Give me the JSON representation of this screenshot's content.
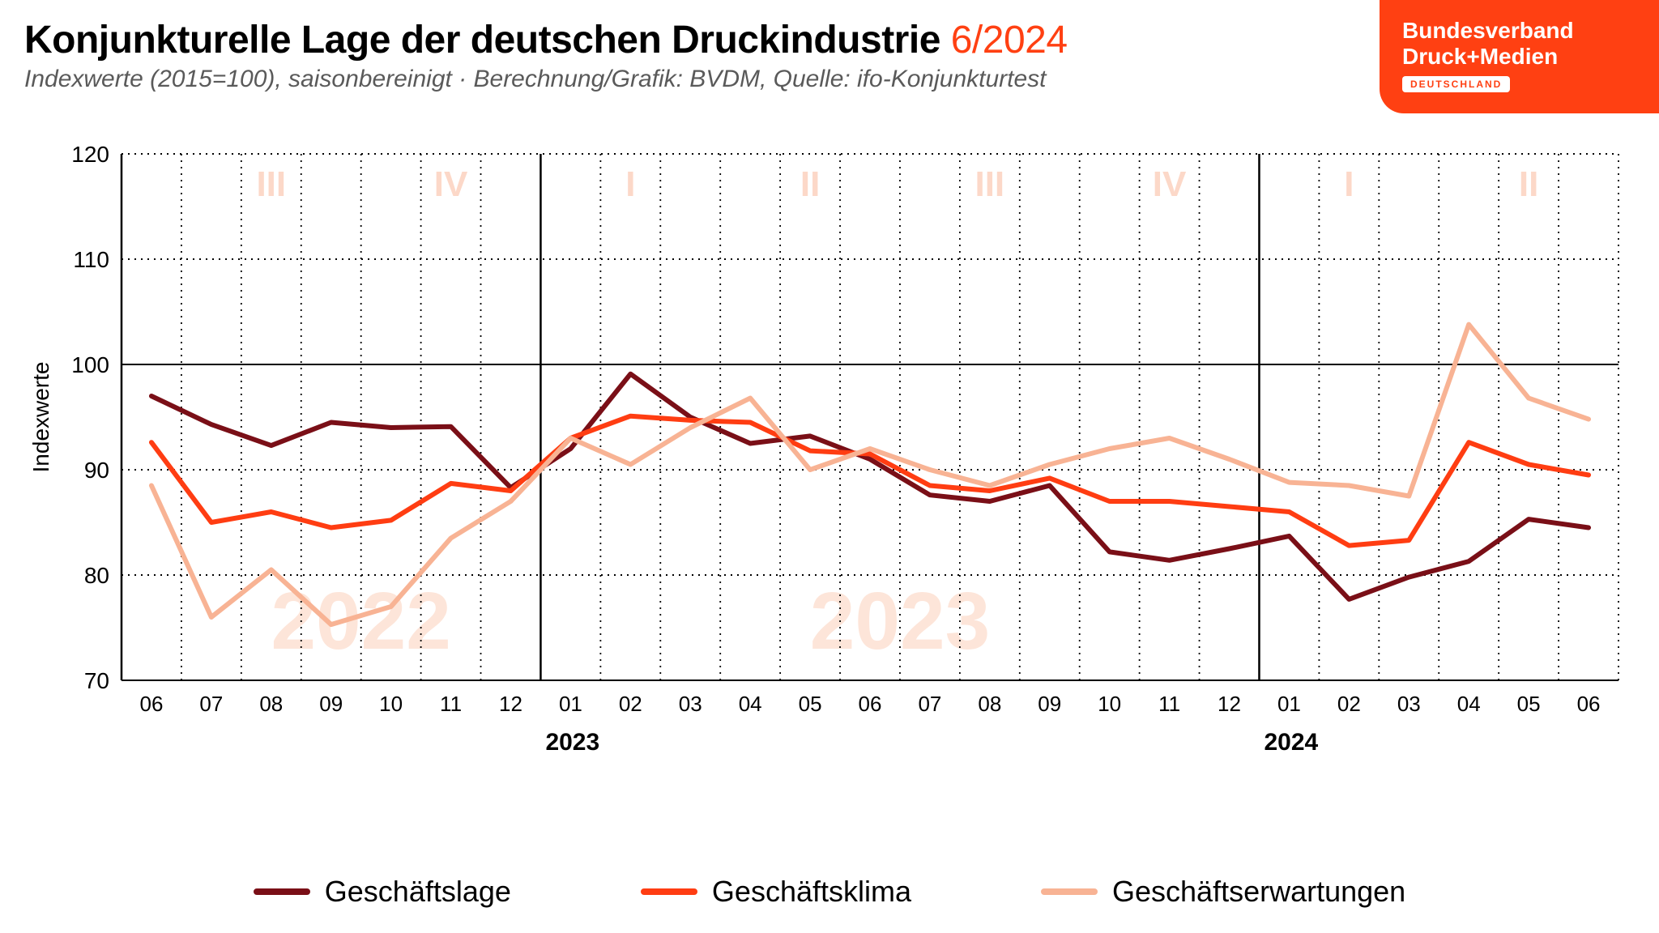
{
  "header": {
    "title_main": "Konjunkturelle Lage der deutschen Druckindustrie",
    "title_date": "6/2024",
    "subtitle": "Indexwerte (2015=100), saisonbereinigt · Berechnung/Grafik: BVDM, Quelle: ifo-Konjunkturtest"
  },
  "logo": {
    "line1": "Bundesverband",
    "line2": "Druck+Medien",
    "badge": "DEUTSCHLAND",
    "bg_color": "#ff4012",
    "text_color": "#ffffff"
  },
  "chart": {
    "type": "line",
    "background_color": "#ffffff",
    "ylabel": "Indexwerte",
    "ylabel_fontsize": 28,
    "ylim": [
      70,
      120
    ],
    "yticks": [
      70,
      80,
      90,
      100,
      110,
      120
    ],
    "ytick_fontsize": 28,
    "x_categories": [
      "06",
      "07",
      "08",
      "09",
      "10",
      "11",
      "12",
      "01",
      "02",
      "03",
      "04",
      "05",
      "06",
      "07",
      "08",
      "09",
      "10",
      "11",
      "12",
      "01",
      "02",
      "03",
      "04",
      "05",
      "06"
    ],
    "xtick_fontsize": 26,
    "year_labels": [
      {
        "text": "2023",
        "at_index": 7
      },
      {
        "text": "2024",
        "at_index": 19
      }
    ],
    "year_label_fontsize": 30,
    "quarter_labels": [
      {
        "text": "III",
        "center_index": 2
      },
      {
        "text": "IV",
        "center_index": 5
      },
      {
        "text": "I",
        "center_index": 8
      },
      {
        "text": "II",
        "center_index": 11
      },
      {
        "text": "III",
        "center_index": 14
      },
      {
        "text": "IV",
        "center_index": 17
      },
      {
        "text": "I",
        "center_index": 20
      },
      {
        "text": "II",
        "center_index": 23
      }
    ],
    "quarter_color": "#fcd8c8",
    "quarter_fontsize": 44,
    "watermarks": [
      {
        "text": "2022",
        "center_index": 3.5,
        "color": "#fde5d9",
        "fontsize": 100
      },
      {
        "text": "2023",
        "center_index": 12.5,
        "color": "#fde5d9",
        "fontsize": 100
      }
    ],
    "solid_vlines_at": [
      0,
      7,
      19
    ],
    "major_grid_color": "#000000",
    "minor_grid_dash": "2,6",
    "minor_grid_color": "#000000",
    "frame_color": "#000000",
    "frame_width": 2,
    "baseline_100_width": 2,
    "series": [
      {
        "name": "Geschäftslage",
        "color": "#7a0f17",
        "width": 6,
        "values": [
          97.0,
          94.3,
          92.3,
          94.5,
          94.0,
          94.1,
          88.3,
          92.0,
          99.1,
          95.0,
          92.5,
          93.2,
          91.0,
          87.6,
          87.0,
          88.5,
          82.2,
          81.4,
          82.5,
          83.7,
          77.7,
          79.8,
          81.3,
          85.3,
          84.5
        ]
      },
      {
        "name": "Geschäftsklima",
        "color": "#ff3d12",
        "width": 6,
        "values": [
          92.6,
          85.0,
          86.0,
          84.5,
          85.2,
          88.7,
          88.0,
          93.0,
          95.1,
          94.7,
          94.5,
          91.8,
          91.5,
          88.5,
          88.0,
          89.2,
          87.0,
          87.0,
          86.5,
          86.0,
          82.8,
          83.3,
          92.6,
          90.5,
          89.5
        ]
      },
      {
        "name": "Geschäftserwartungen",
        "color": "#f8b394",
        "width": 6,
        "values": [
          88.5,
          76.0,
          80.5,
          75.3,
          77.0,
          83.5,
          87.0,
          93.0,
          90.5,
          94.0,
          96.8,
          90.0,
          92.0,
          90.0,
          88.5,
          90.5,
          92.0,
          93.0,
          91.0,
          88.8,
          88.5,
          87.5,
          103.8,
          96.8,
          94.8
        ]
      }
    ],
    "legend_fontsize": 36,
    "legend_text_color": "#000000"
  }
}
